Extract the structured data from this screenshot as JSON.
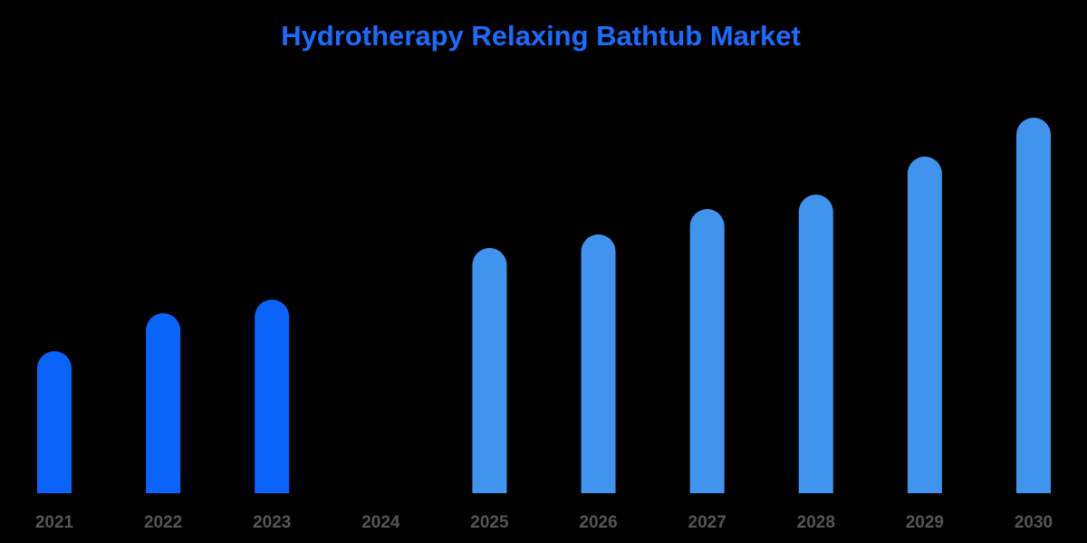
{
  "chart_data": {
    "type": "bar",
    "title": "Hydrotherapy Relaxing Bathtub Market",
    "categories": [
      "2021",
      "2022",
      "2023",
      "2024",
      "2025",
      "2026",
      "2027",
      "2028",
      "2029",
      "2030"
    ],
    "values": [
      157,
      199,
      214,
      null,
      271,
      286,
      314,
      330,
      372,
      415
    ],
    "colors": [
      "#0a64fa",
      "#0a64fa",
      "#0a64fa",
      null,
      "#4194ee",
      "#4194ee",
      "#4194ee",
      "#4194ee",
      "#4194ee",
      "#4194ee"
    ],
    "ylim": [
      0,
      420
    ],
    "grid": false
  }
}
